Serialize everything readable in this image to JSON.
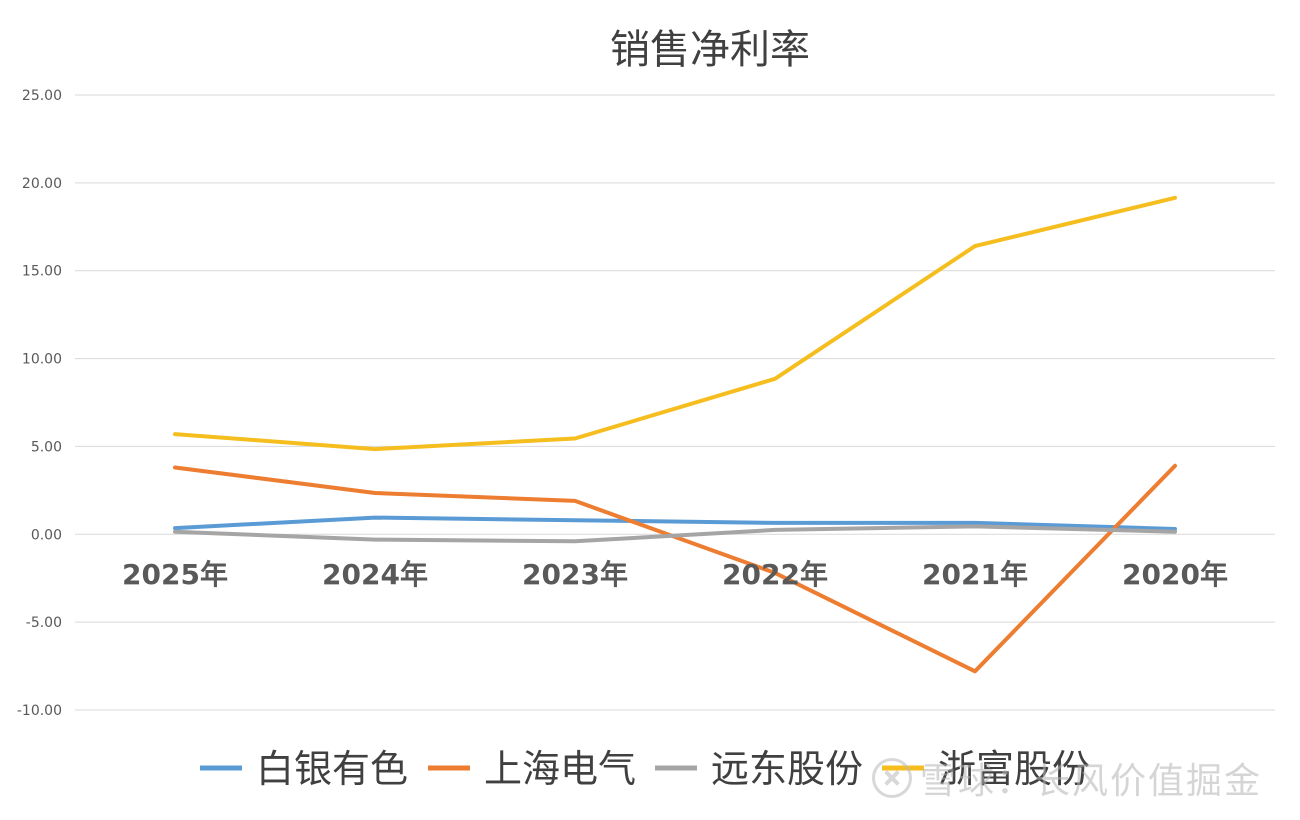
{
  "chart_data": {
    "type": "line",
    "title": "销售净利率",
    "categories": [
      "2025年",
      "2024年",
      "2023年",
      "2022年",
      "2021年",
      "2020年"
    ],
    "ylim": [
      -10,
      25
    ],
    "yticks": [
      25,
      20,
      15,
      10,
      5,
      0,
      -5,
      -10
    ],
    "ytick_labels": [
      "25.00",
      "20.00",
      "15.00",
      "10.00",
      "5.00",
      "0.00",
      "-5.00",
      "-10.00"
    ],
    "grid": true,
    "legend": "bottom",
    "series": [
      {
        "name": "白银有色",
        "color": "#5b9bd5",
        "values": [
          0.35,
          0.95,
          0.8,
          0.65,
          0.65,
          0.3
        ]
      },
      {
        "name": "上海电气",
        "color": "#ed7d31",
        "values": [
          3.8,
          2.35,
          1.9,
          -2.2,
          -7.8,
          3.9
        ]
      },
      {
        "name": "远东股份",
        "color": "#a5a5a5",
        "values": [
          0.15,
          -0.3,
          -0.4,
          0.25,
          0.45,
          0.15
        ]
      },
      {
        "name": "浙富股份",
        "color": "#f5be1e",
        "values": [
          5.7,
          4.85,
          5.45,
          8.85,
          16.4,
          19.15
        ]
      }
    ]
  },
  "watermark": "雪球：长风价值掘金"
}
